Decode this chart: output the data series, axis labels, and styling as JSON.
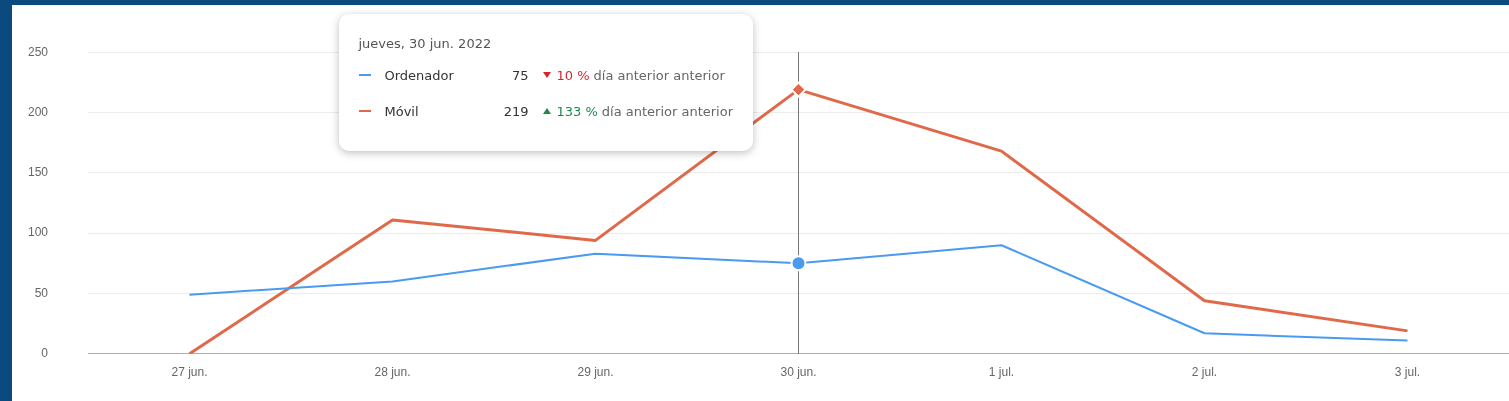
{
  "chart_data": {
    "type": "line",
    "categories": [
      "27 jun.",
      "28 jun.",
      "29 jun.",
      "30 jun.",
      "1 jul.",
      "2 jul.",
      "3 jul."
    ],
    "series": [
      {
        "name": "Ordenador",
        "color": "#4a9af0",
        "values": [
          49,
          60,
          83,
          75,
          90,
          17,
          11
        ]
      },
      {
        "name": "Móvil",
        "color": "#e0694a",
        "values": [
          0,
          111,
          94,
          219,
          168,
          44,
          19
        ]
      }
    ],
    "ylim": [
      0,
      250
    ],
    "yticks": [
      0,
      50,
      100,
      150,
      200,
      250
    ],
    "grid": "y",
    "legend": "top left",
    "ref_lines": [
      {
        "axis": "x",
        "value": "30 jun.",
        "color": "#777777"
      }
    ],
    "annotations": [
      "jueves, 30 jun. 2022",
      "75",
      "10 %",
      "día anterior anterior",
      "219",
      "133 %",
      "día anterior anterior"
    ]
  }
}
